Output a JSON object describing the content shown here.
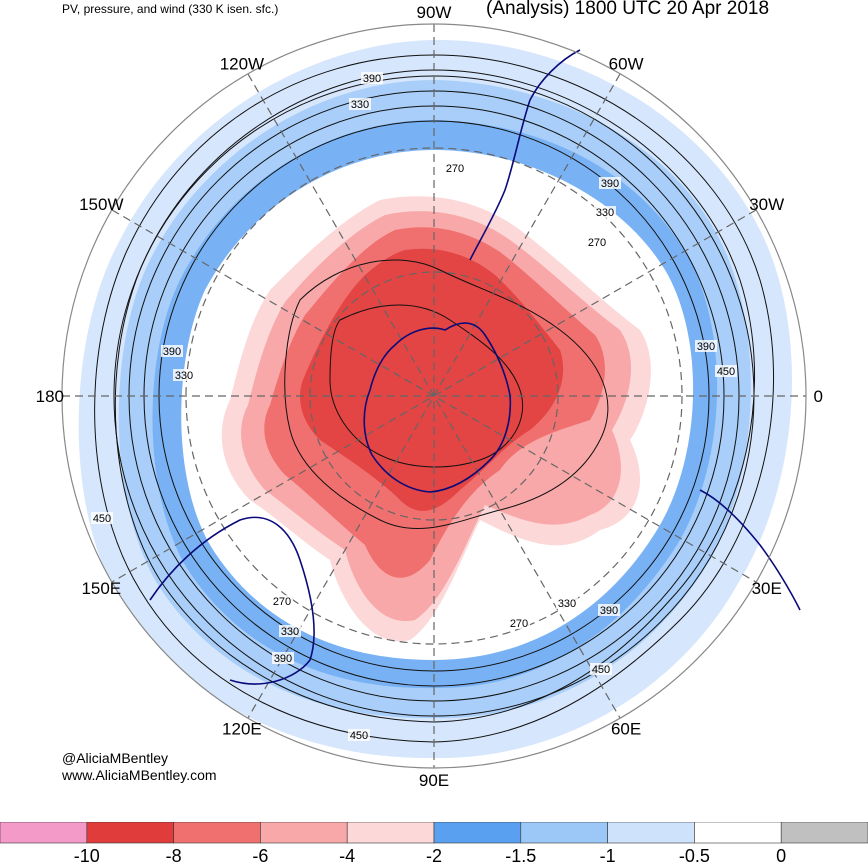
{
  "header": {
    "left_title": "PV, pressure, and wind (330 K isen. sfc.)",
    "right_title": "(Analysis) 1800 UTC 20 Apr 2018"
  },
  "map": {
    "projection": "south-polar-stereographic",
    "longitude_labels": [
      {
        "text": "90W",
        "lon": -90
      },
      {
        "text": "60W",
        "lon": -60
      },
      {
        "text": "30W",
        "lon": -30
      },
      {
        "text": "0",
        "lon": 0
      },
      {
        "text": "30E",
        "lon": 30
      },
      {
        "text": "60E",
        "lon": 60
      },
      {
        "text": "90E",
        "lon": 90
      },
      {
        "text": "120E",
        "lon": 120
      },
      {
        "text": "150E",
        "lon": 150
      },
      {
        "text": "180",
        "lon": 180
      },
      {
        "text": "150W",
        "lon": -150
      },
      {
        "text": "120W",
        "lon": -120
      }
    ],
    "contour_labels": [
      "390",
      "330",
      "270",
      "390",
      "330",
      "270",
      "390",
      "450",
      "390",
      "330",
      "450",
      "270",
      "330",
      "390",
      "330",
      "270",
      "390",
      "450",
      "450"
    ],
    "pv_colors": [
      "#f49ac8",
      "#e03c3c",
      "#f07070",
      "#f8a8a8",
      "#fcd8d8",
      "#5aa0f0",
      "#9cc8f8",
      "#cfe2fc",
      "#ffffff",
      "#c0c0c0"
    ]
  },
  "credits": {
    "twitter": "@AliciaMBentley",
    "website": "www.AliciaMBentley.com"
  },
  "colorbar": {
    "colors": [
      "#f49ac8",
      "#e03c3c",
      "#f07070",
      "#f8a8a8",
      "#fcd8d8",
      "#5aa0f0",
      "#9cc8f8",
      "#cfe2fc",
      "#ffffff",
      "#c0c0c0"
    ],
    "labels": [
      "-10",
      "-8",
      "-6",
      "-4",
      "-2",
      "-1.5",
      "-1",
      "-0.5",
      "0"
    ]
  }
}
